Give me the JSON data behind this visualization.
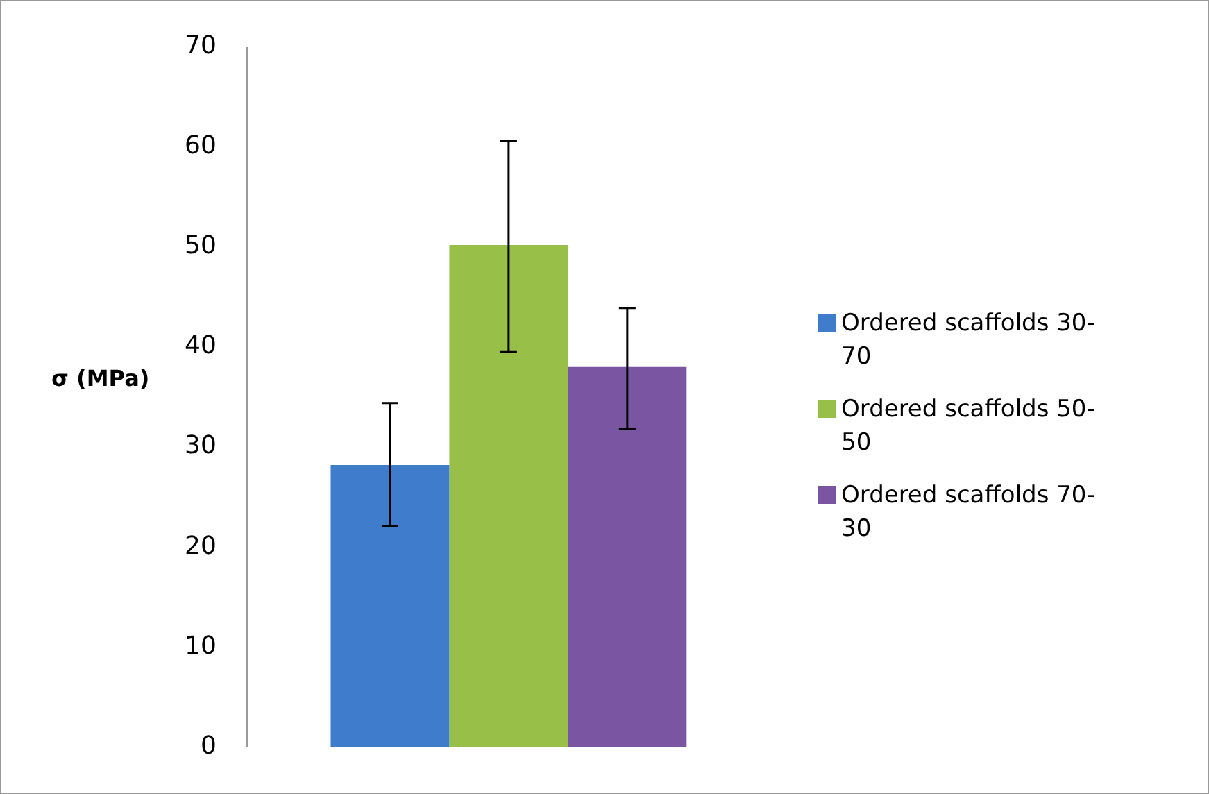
{
  "chart_data": {
    "type": "bar",
    "ylabel": "σ (MPa)",
    "categories": [
      null
    ],
    "series": [
      {
        "name": "Ordered scaffolds 30-70",
        "color": "#3f7dcc",
        "values": [
          28.2
        ],
        "errors": [
          [
            22.1,
            34.4
          ]
        ]
      },
      {
        "name": "Ordered scaffolds 50-50",
        "color": "#98bf48",
        "values": [
          50.2
        ],
        "errors": [
          [
            39.5,
            60.6
          ]
        ]
      },
      {
        "name": "Ordered scaffolds 70-30",
        "color": "#7a55a2",
        "values": [
          38.0
        ],
        "errors": [
          [
            31.8,
            43.9
          ]
        ]
      }
    ],
    "ylim": [
      0,
      70
    ],
    "yticks": [
      0,
      10,
      20,
      30,
      40,
      50,
      60,
      70
    ],
    "grid": false,
    "legend": "right"
  }
}
